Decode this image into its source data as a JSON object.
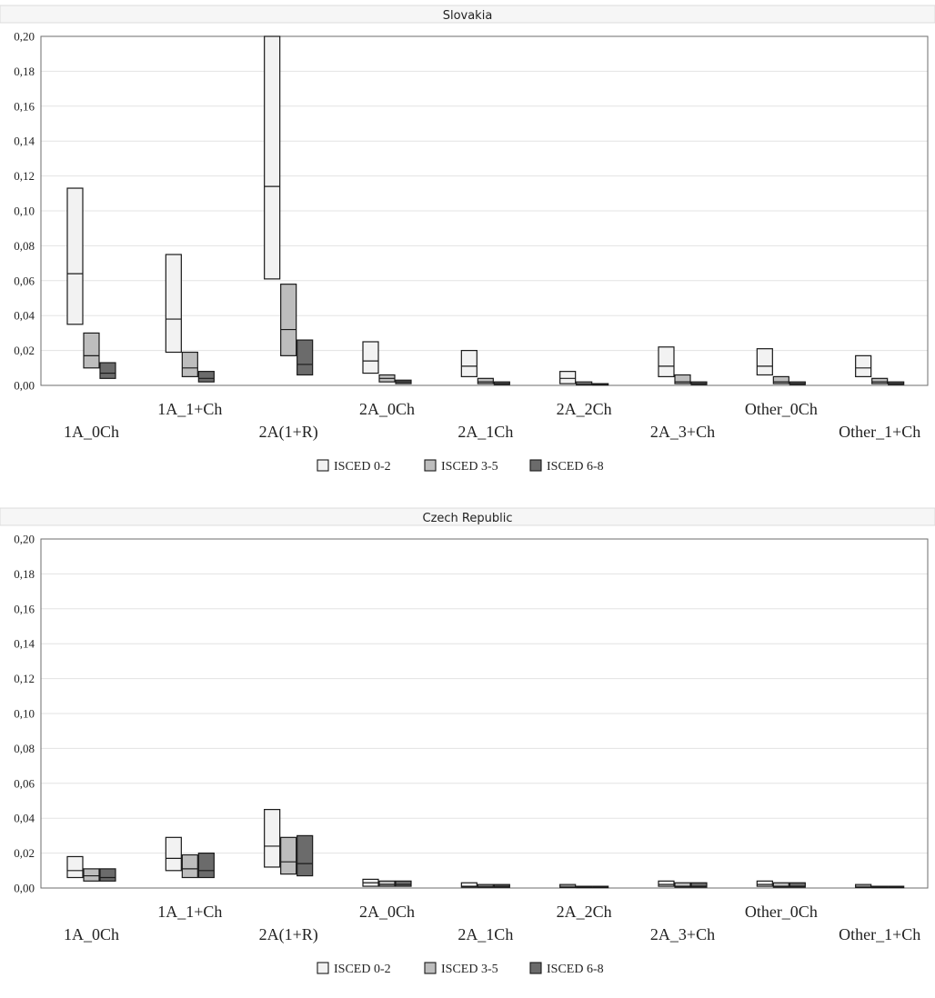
{
  "chart_data": [
    {
      "type": "box",
      "title": "Slovakia",
      "ylim": [
        0,
        0.2
      ],
      "yticks": [
        "0,00",
        "0,02",
        "0,04",
        "0,06",
        "0,08",
        "0,10",
        "0,12",
        "0,14",
        "0,16",
        "0,18",
        "0,20"
      ],
      "categories": [
        "1A_0Ch",
        "1A_1+Ch",
        "2A(1+R)",
        "2A_0Ch",
        "2A_1Ch",
        "2A_2Ch",
        "2A_3+Ch",
        "Other_0Ch",
        "Other_1+Ch"
      ],
      "legend_position": "bottom",
      "series": [
        {
          "name": "ISCED 0-2",
          "color": "#f2f2f2",
          "low": [
            0.035,
            0.019,
            0.061,
            0.007,
            0.005,
            0.001,
            0.005,
            0.006,
            0.005
          ],
          "mid": [
            0.064,
            0.038,
            0.114,
            0.014,
            0.011,
            0.004,
            0.011,
            0.011,
            0.01
          ],
          "high": [
            0.113,
            0.075,
            0.2,
            0.025,
            0.02,
            0.008,
            0.022,
            0.021,
            0.017
          ]
        },
        {
          "name": "ISCED 3-5",
          "color": "#bdbdbd",
          "low": [
            0.01,
            0.005,
            0.017,
            0.002,
            0.001,
            0.0003,
            0.001,
            0.001,
            0.001
          ],
          "mid": [
            0.017,
            0.01,
            0.032,
            0.004,
            0.002,
            0.001,
            0.002,
            0.002,
            0.002
          ],
          "high": [
            0.03,
            0.019,
            0.058,
            0.006,
            0.004,
            0.002,
            0.006,
            0.005,
            0.004
          ]
        },
        {
          "name": "ISCED 6-8",
          "color": "#6b6b6b",
          "low": [
            0.004,
            0.002,
            0.006,
            0.001,
            0.0005,
            0.0002,
            0.0005,
            0.0005,
            0.0005
          ],
          "mid": [
            0.007,
            0.004,
            0.012,
            0.002,
            0.001,
            0.0004,
            0.001,
            0.001,
            0.001
          ],
          "high": [
            0.013,
            0.008,
            0.026,
            0.003,
            0.002,
            0.001,
            0.002,
            0.002,
            0.002
          ]
        }
      ]
    },
    {
      "type": "box",
      "title": "Czech Republic",
      "ylim": [
        0,
        0.2
      ],
      "yticks": [
        "0,00",
        "0,02",
        "0,04",
        "0,06",
        "0,08",
        "0,10",
        "0,12",
        "0,14",
        "0,16",
        "0,18",
        "0,20"
      ],
      "categories": [
        "1A_0Ch",
        "1A_1+Ch",
        "2A(1+R)",
        "2A_0Ch",
        "2A_1Ch",
        "2A_2Ch",
        "2A_3+Ch",
        "Other_0Ch",
        "Other_1+Ch"
      ],
      "legend_position": "bottom",
      "series": [
        {
          "name": "ISCED 0-2",
          "color": "#f2f2f2",
          "low": [
            0.006,
            0.01,
            0.012,
            0.001,
            0.0005,
            0.0003,
            0.001,
            0.001,
            0.0003
          ],
          "mid": [
            0.01,
            0.017,
            0.024,
            0.003,
            0.001,
            0.001,
            0.002,
            0.002,
            0.001
          ],
          "high": [
            0.018,
            0.029,
            0.045,
            0.005,
            0.003,
            0.002,
            0.004,
            0.004,
            0.002
          ]
        },
        {
          "name": "ISCED 3-5",
          "color": "#bdbdbd",
          "low": [
            0.004,
            0.006,
            0.008,
            0.001,
            0.0004,
            0.0002,
            0.0005,
            0.0005,
            0.0002
          ],
          "mid": [
            0.007,
            0.011,
            0.015,
            0.002,
            0.001,
            0.0005,
            0.001,
            0.001,
            0.0005
          ],
          "high": [
            0.011,
            0.019,
            0.029,
            0.004,
            0.002,
            0.001,
            0.003,
            0.003,
            0.001
          ]
        },
        {
          "name": "ISCED 6-8",
          "color": "#6b6b6b",
          "low": [
            0.004,
            0.006,
            0.007,
            0.001,
            0.0004,
            0.0002,
            0.0005,
            0.0005,
            0.0002
          ],
          "mid": [
            0.006,
            0.01,
            0.014,
            0.002,
            0.001,
            0.0005,
            0.001,
            0.001,
            0.0005
          ],
          "high": [
            0.011,
            0.02,
            0.03,
            0.004,
            0.002,
            0.001,
            0.003,
            0.003,
            0.001
          ]
        }
      ]
    }
  ]
}
